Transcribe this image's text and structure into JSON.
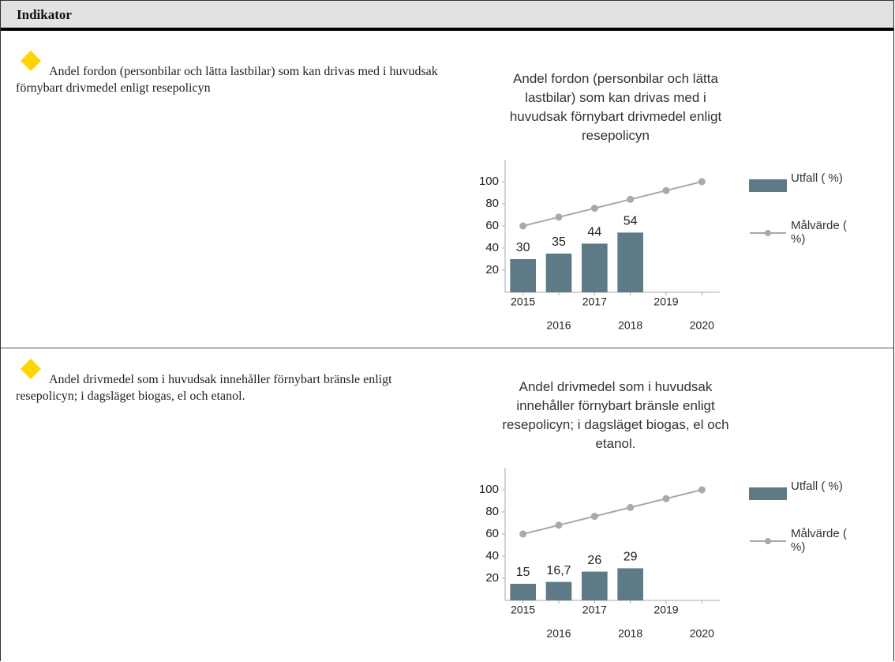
{
  "table": {
    "header": "Indikator",
    "rows": [
      {
        "text": "Andel fordon (personbilar och lätta lastbilar) som kan drivas med i huvudsak förnybart drivmedel enligt resepolicyn"
      },
      {
        "text": "Andel drivmedel som i huvudsak innehåller förnybart bränsle enligt resepolicyn; i dagsläget biogas, el och etanol."
      }
    ]
  },
  "chart_data": [
    {
      "type": "bar",
      "title": "Andel fordon (personbilar och lätta lastbilar) som kan drivas med i huvudsak förnybart drivmedel enligt resepolicyn",
      "categories": [
        "2015",
        "2016",
        "2017",
        "2018",
        "2019",
        "2020"
      ],
      "series": [
        {
          "name": "Utfall ( %)",
          "type": "bar",
          "color": "#5f7a87",
          "values": [
            30,
            35,
            44,
            54,
            null,
            null
          ]
        },
        {
          "name": "Målvärde ( %)",
          "type": "line",
          "color": "#a9a9a9",
          "values": [
            60,
            68,
            76,
            84,
            92,
            100
          ]
        }
      ],
      "ylim": [
        0,
        120
      ],
      "yticks": [
        20,
        40,
        60,
        80,
        100
      ],
      "grid": false,
      "legend": "right"
    },
    {
      "type": "bar",
      "title": "Andel drivmedel som i huvudsak innehåller förnybart bränsle enligt resepolicyn; i dagsläget biogas, el och etanol.",
      "categories": [
        "2015",
        "2016",
        "2017",
        "2018",
        "2019",
        "2020"
      ],
      "series": [
        {
          "name": "Utfall ( %)",
          "type": "bar",
          "color": "#5f7a87",
          "values": [
            15,
            16.7,
            26,
            29,
            null,
            null
          ],
          "value_labels": [
            "15",
            "16,7",
            "26",
            "29",
            null,
            null
          ]
        },
        {
          "name": "Målvärde ( %)",
          "type": "line",
          "color": "#a9a9a9",
          "values": [
            60,
            68,
            76,
            84,
            92,
            100
          ]
        }
      ],
      "ylim": [
        0,
        120
      ],
      "yticks": [
        20,
        40,
        60,
        80,
        100
      ],
      "grid": false,
      "legend": "right"
    }
  ]
}
